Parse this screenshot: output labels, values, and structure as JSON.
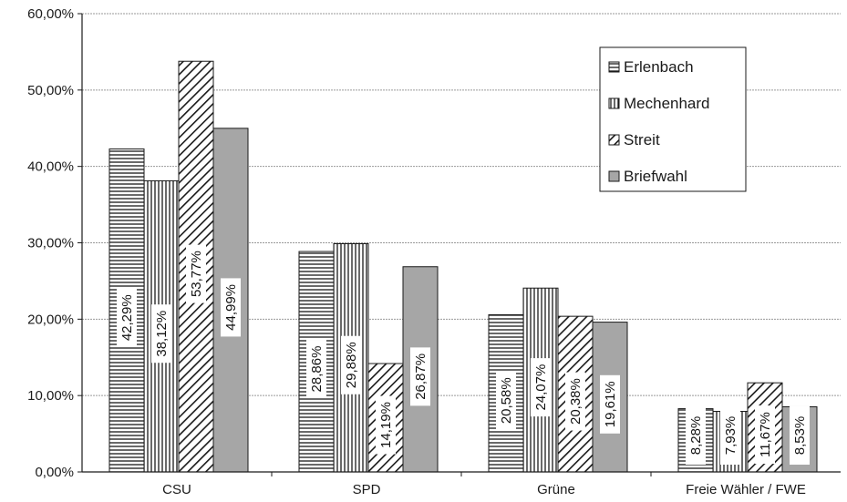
{
  "chart_data": {
    "type": "bar",
    "title": "",
    "xlabel": "",
    "ylabel": "",
    "categories": [
      "CSU",
      "SPD",
      "Grüne",
      "Freie Wähler / FWE"
    ],
    "series": [
      {
        "name": "Erlenbach",
        "pattern": "horizontal-lines",
        "values": [
          42.29,
          28.86,
          20.58,
          8.28
        ],
        "labels": [
          "42,29%",
          "28,86%",
          "20,58%",
          "8,28%"
        ]
      },
      {
        "name": "Mechenhard",
        "pattern": "vertical-lines",
        "values": [
          38.12,
          29.88,
          24.07,
          7.93
        ],
        "labels": [
          "38,12%",
          "29,88%",
          "24,07%",
          "7,93%"
        ]
      },
      {
        "name": "Streit",
        "pattern": "diagonal-hatch",
        "values": [
          53.77,
          14.19,
          20.38,
          11.67
        ],
        "labels": [
          "53,77%",
          "14,19%",
          "20,38%",
          "11,67%"
        ]
      },
      {
        "name": "Briefwahl",
        "pattern": "solid-gray",
        "values": [
          44.99,
          26.87,
          19.61,
          8.53
        ],
        "labels": [
          "44,99%",
          "26,87%",
          "19,61%",
          "8,53%"
        ]
      }
    ],
    "ylim": [
      0,
      60
    ],
    "yticks": [
      {
        "value": 0,
        "label": "0,00%"
      },
      {
        "value": 10,
        "label": "10,00%"
      },
      {
        "value": 20,
        "label": "20,00%"
      },
      {
        "value": 30,
        "label": "30,00%"
      },
      {
        "value": 40,
        "label": "40,00%"
      },
      {
        "value": 50,
        "label": "50,00%"
      },
      {
        "value": 60,
        "label": "60,00%"
      }
    ],
    "grid": true,
    "legend_position": "top-right",
    "data_labels": "rotated-vertical",
    "colors": {
      "bar_fill": "#ffffff",
      "briefwahl_fill": "#a6a6a6",
      "stroke": "#1a1a1a",
      "grid": "#9a9a9a"
    }
  }
}
